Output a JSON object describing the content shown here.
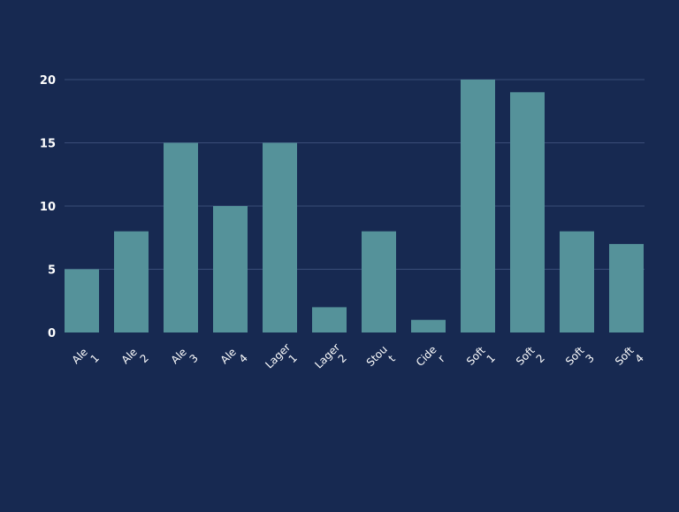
{
  "chart_data": {
    "type": "bar",
    "categories": [
      [
        "Ale",
        "1"
      ],
      [
        "Ale",
        "2"
      ],
      [
        "Ale",
        "3"
      ],
      [
        "Ale",
        "4"
      ],
      [
        "Lager",
        "1"
      ],
      [
        "Lager",
        "2"
      ],
      [
        "Stou",
        "t"
      ],
      [
        "Cide",
        "r"
      ],
      [
        "Soft",
        "1"
      ],
      [
        "Soft",
        "2"
      ],
      [
        "Soft",
        "3"
      ],
      [
        "Soft",
        "4"
      ]
    ],
    "values": [
      5,
      8,
      15,
      10,
      15,
      2,
      8,
      1,
      20,
      19,
      8,
      7
    ],
    "title": "",
    "xlabel": "",
    "ylabel": "",
    "ylim": [
      0,
      20
    ],
    "yticks": [
      "0",
      "5",
      "10",
      "15",
      "20"
    ],
    "grid": true,
    "colors": {
      "background": "#172951",
      "bar": "#55929a",
      "grid": "#3a4d78",
      "text": "#ffffff"
    }
  }
}
